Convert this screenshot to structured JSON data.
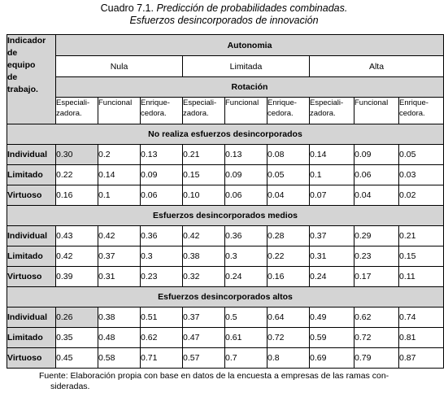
{
  "caption": {
    "number": "Cuadro 7.1.",
    "title_line1": "Predicción de probabilidades combinadas.",
    "title_line2": "Esfuerzos desincorporados de innovación"
  },
  "table": {
    "corner_lines": [
      "Indicador",
      "de",
      "equipo",
      "de",
      "trabajo."
    ],
    "autonomia_label": "Autonomia",
    "autonomia_levels": [
      "Nula",
      "Limitada",
      "Alta"
    ],
    "rotacion_label": "Rotación",
    "rotacion_types": [
      [
        "Especiali-",
        "zadora."
      ],
      [
        "Funcional"
      ],
      [
        "Enrique-",
        "cedora."
      ],
      [
        "Especiali-",
        "zadora."
      ],
      [
        "Funcional"
      ],
      [
        "Enrique-",
        "cedora."
      ],
      [
        "Especiali-",
        "zadora."
      ],
      [
        "Funcional"
      ],
      [
        "Enrique-",
        "cedora."
      ]
    ],
    "sections": [
      {
        "title": "No realiza esfuerzos desincorporados",
        "rows": [
          {
            "label": "Individual",
            "values": [
              "0.30",
              "0.2",
              "0.13",
              "0.21",
              "0.13",
              "0.08",
              "0.14",
              "0.09",
              "0.05"
            ]
          },
          {
            "label": "Limitado",
            "values": [
              "0.22",
              "0.14",
              "0.09",
              "0.15",
              "0.09",
              "0.05",
              "0.1",
              "0.06",
              "0.03"
            ]
          },
          {
            "label": "Virtuoso",
            "values": [
              "0.16",
              "0.1",
              "0.06",
              "0.10",
              "0.06",
              "0.04",
              "0.07",
              "0.04",
              "0.02"
            ]
          }
        ]
      },
      {
        "title": "Esfuerzos desincorporados medios",
        "rows": [
          {
            "label": "Individual",
            "values": [
              "0.43",
              "0.42",
              "0.36",
              "0.42",
              "0.36",
              "0.28",
              "0.37",
              "0.29",
              "0.21"
            ]
          },
          {
            "label": "Limitado",
            "values": [
              "0.42",
              "0.37",
              "0.3",
              "0.38",
              "0.3",
              "0.22",
              "0.31",
              "0.23",
              "0.15"
            ]
          },
          {
            "label": "Virtuoso",
            "values": [
              "0.39",
              "0.31",
              "0.23",
              "0.32",
              "0.24",
              "0.16",
              "0.24",
              "0.17",
              "0.11"
            ]
          }
        ]
      },
      {
        "title": "Esfuerzos desincorporados altos",
        "rows": [
          {
            "label": "Individual",
            "values": [
              "0.26",
              "0.38",
              "0.51",
              "0.37",
              "0.5",
              "0.64",
              "0.49",
              "0.62",
              "0.74"
            ]
          },
          {
            "label": "Limitado",
            "values": [
              "0.35",
              "0.48",
              "0.62",
              "0.47",
              "0.61",
              "0.72",
              "0.59",
              "0.72",
              "0.81"
            ]
          },
          {
            "label": "Virtuoso",
            "values": [
              "0.45",
              "0.58",
              "0.71",
              "0.57",
              "0.7",
              "0.8",
              "0.69",
              "0.79",
              "0.87"
            ]
          }
        ]
      }
    ],
    "highlight_color": "#d4d4d4"
  },
  "footer": {
    "line1": "Fuente: Elaboración propia con base en datos de la encuesta a empresas de las ramas con-",
    "line2": "sideradas."
  }
}
